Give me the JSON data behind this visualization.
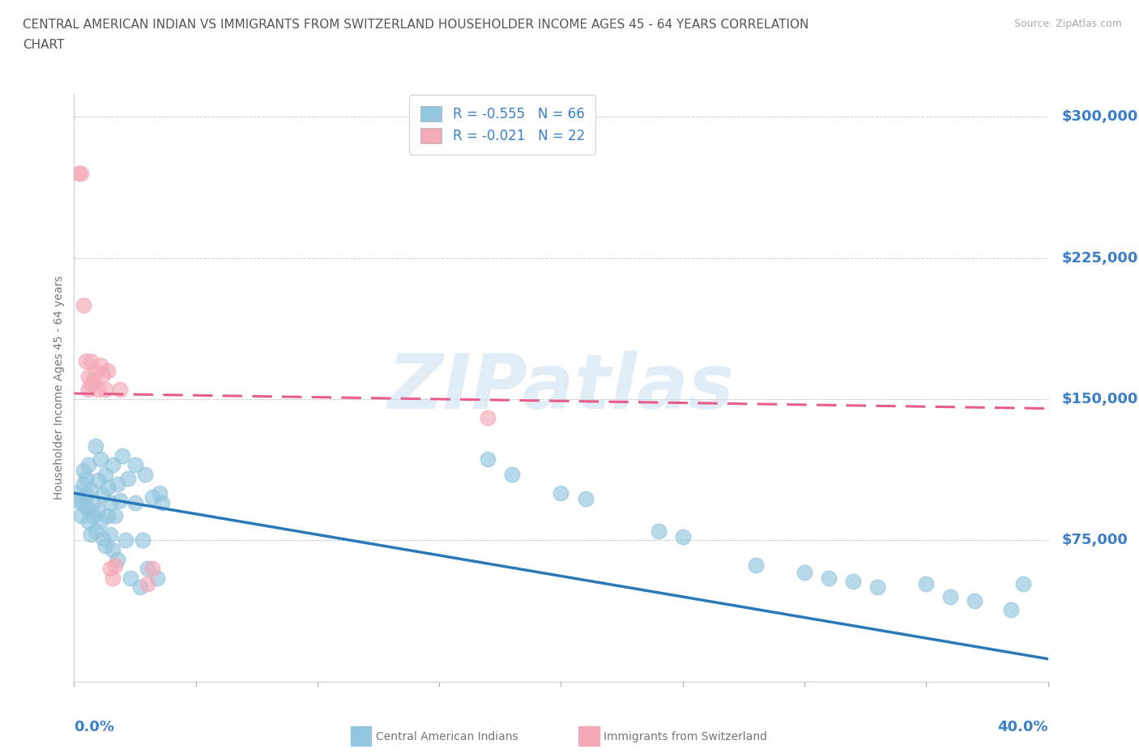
{
  "title_line1": "CENTRAL AMERICAN INDIAN VS IMMIGRANTS FROM SWITZERLAND HOUSEHOLDER INCOME AGES 45 - 64 YEARS CORRELATION",
  "title_line2": "CHART",
  "source": "Source: ZipAtlas.com",
  "ylabel": "Householder Income Ages 45 - 64 years",
  "xmin": 0.0,
  "xmax": 0.4,
  "ymin": 0,
  "ymax": 312000,
  "yticks": [
    0,
    75000,
    150000,
    225000,
    300000
  ],
  "ytick_labels": [
    "",
    "$75,000",
    "$150,000",
    "$225,000",
    "$300,000"
  ],
  "watermark": "ZIPatlas",
  "legend_entry1": "R = -0.555   N = 66",
  "legend_entry2": "R = -0.021   N = 22",
  "blue_color": "#92c5de",
  "pink_color": "#f4a9b8",
  "blue_scatter": [
    [
      0.001,
      100000
    ],
    [
      0.002,
      97000
    ],
    [
      0.003,
      95000
    ],
    [
      0.003,
      88000
    ],
    [
      0.004,
      105000
    ],
    [
      0.004,
      112000
    ],
    [
      0.005,
      93000
    ],
    [
      0.005,
      99000
    ],
    [
      0.005,
      108000
    ],
    [
      0.006,
      85000
    ],
    [
      0.006,
      91000
    ],
    [
      0.006,
      115000
    ],
    [
      0.007,
      78000
    ],
    [
      0.007,
      102000
    ],
    [
      0.008,
      95000
    ],
    [
      0.008,
      88000
    ],
    [
      0.009,
      125000
    ],
    [
      0.009,
      80000
    ],
    [
      0.01,
      107000
    ],
    [
      0.01,
      91000
    ],
    [
      0.011,
      118000
    ],
    [
      0.011,
      85000
    ],
    [
      0.012,
      76000
    ],
    [
      0.012,
      99000
    ],
    [
      0.013,
      110000
    ],
    [
      0.013,
      72000
    ],
    [
      0.014,
      103000
    ],
    [
      0.014,
      88000
    ],
    [
      0.015,
      95000
    ],
    [
      0.015,
      78000
    ],
    [
      0.016,
      115000
    ],
    [
      0.016,
      70000
    ],
    [
      0.017,
      88000
    ],
    [
      0.018,
      105000
    ],
    [
      0.018,
      65000
    ],
    [
      0.019,
      96000
    ],
    [
      0.02,
      120000
    ],
    [
      0.021,
      75000
    ],
    [
      0.022,
      108000
    ],
    [
      0.023,
      55000
    ],
    [
      0.025,
      115000
    ],
    [
      0.025,
      95000
    ],
    [
      0.027,
      50000
    ],
    [
      0.028,
      75000
    ],
    [
      0.029,
      110000
    ],
    [
      0.03,
      60000
    ],
    [
      0.032,
      98000
    ],
    [
      0.034,
      55000
    ],
    [
      0.035,
      100000
    ],
    [
      0.036,
      95000
    ],
    [
      0.17,
      118000
    ],
    [
      0.18,
      110000
    ],
    [
      0.2,
      100000
    ],
    [
      0.21,
      97000
    ],
    [
      0.24,
      80000
    ],
    [
      0.25,
      77000
    ],
    [
      0.28,
      62000
    ],
    [
      0.3,
      58000
    ],
    [
      0.31,
      55000
    ],
    [
      0.32,
      53000
    ],
    [
      0.33,
      50000
    ],
    [
      0.35,
      52000
    ],
    [
      0.36,
      45000
    ],
    [
      0.37,
      43000
    ],
    [
      0.385,
      38000
    ],
    [
      0.39,
      52000
    ]
  ],
  "pink_scatter": [
    [
      0.002,
      270000
    ],
    [
      0.003,
      270000
    ],
    [
      0.004,
      200000
    ],
    [
      0.005,
      170000
    ],
    [
      0.006,
      162000
    ],
    [
      0.006,
      155000
    ],
    [
      0.007,
      170000
    ],
    [
      0.007,
      158000
    ],
    [
      0.008,
      160000
    ],
    [
      0.009,
      165000
    ],
    [
      0.01,
      155000
    ],
    [
      0.011,
      168000
    ],
    [
      0.012,
      163000
    ],
    [
      0.013,
      155000
    ],
    [
      0.014,
      165000
    ],
    [
      0.015,
      60000
    ],
    [
      0.016,
      55000
    ],
    [
      0.017,
      62000
    ],
    [
      0.019,
      155000
    ],
    [
      0.17,
      140000
    ],
    [
      0.03,
      52000
    ],
    [
      0.032,
      60000
    ]
  ],
  "blue_line": [
    [
      0.0,
      100000
    ],
    [
      0.4,
      12000
    ]
  ],
  "pink_line": [
    [
      0.0,
      153000
    ],
    [
      0.4,
      145000
    ]
  ],
  "grid_color": "#cccccc",
  "bg_color": "#ffffff",
  "right_label_color": "#3a7dc9",
  "title_color": "#555555",
  "axis_label_color": "#777777",
  "bottom_legend": [
    {
      "label": "Central American Indians",
      "color": "#92c5de"
    },
    {
      "label": "Immigrants from Switzerland",
      "color": "#f4a9b8"
    }
  ]
}
